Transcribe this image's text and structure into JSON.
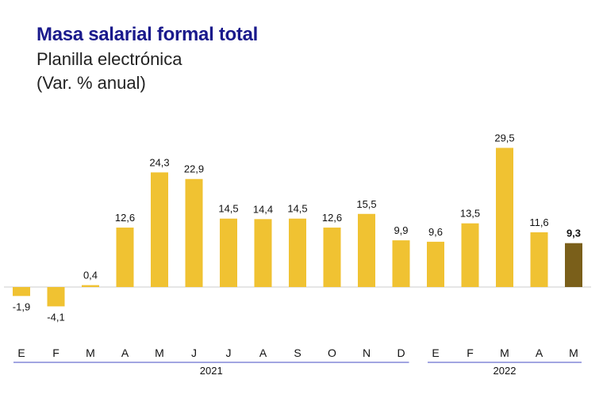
{
  "chart_data": {
    "type": "bar",
    "title": "Masa salarial formal total",
    "subtitle": "Planilla electrónica",
    "unit_label": "(Var. % anual)",
    "categories": [
      "E",
      "F",
      "M",
      "A",
      "M",
      "J",
      "J",
      "A",
      "S",
      "O",
      "N",
      "D",
      "E",
      "F",
      "M",
      "A",
      "M"
    ],
    "values": [
      -1.9,
      -4.1,
      0.4,
      12.6,
      24.3,
      22.9,
      14.5,
      14.4,
      14.5,
      12.6,
      15.5,
      9.9,
      9.6,
      13.5,
      29.5,
      11.6,
      9.3
    ],
    "value_labels": [
      "-1,9",
      "-4,1",
      "0,4",
      "12,6",
      "24,3",
      "22,9",
      "14,5",
      "14,4",
      "14,5",
      "12,6",
      "15,5",
      "9,9",
      "9,6",
      "13,5",
      "29,5",
      "11,6",
      "9,3"
    ],
    "highlight_index": 16,
    "groups": [
      {
        "label": "2021",
        "start": 0,
        "end": 11
      },
      {
        "label": "2022",
        "start": 12,
        "end": 16
      }
    ],
    "ylim": [
      -4.1,
      29.5
    ],
    "grid": false,
    "colors": {
      "bar": "#F0C232",
      "highlight": "#7A5F1A",
      "group_line": "#6A6FCF",
      "zero_line": "#cccccc"
    }
  }
}
